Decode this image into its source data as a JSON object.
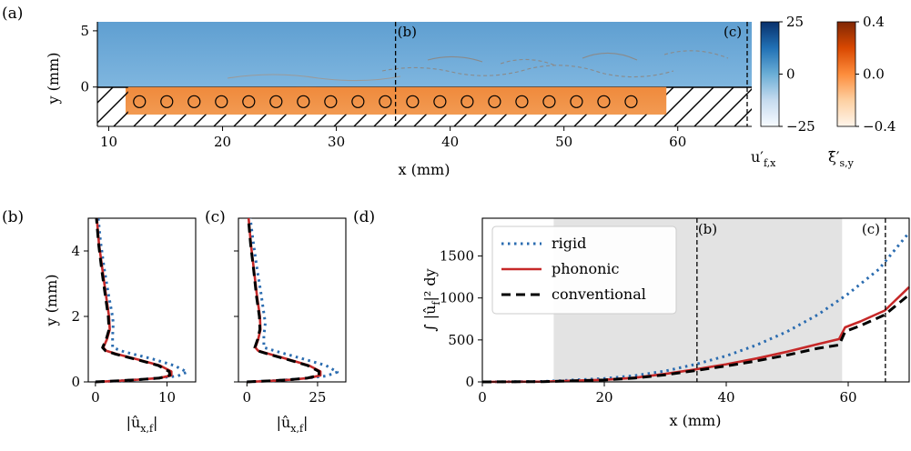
{
  "chart_data": [
    {
      "panel": "(a)",
      "type": "heatmap",
      "xlabel": "x (mm)",
      "ylabel": "y (mm)",
      "xticks": [
        "10",
        "20",
        "30",
        "40",
        "50",
        "60"
      ],
      "yticks": [
        "0",
        "5"
      ],
      "xlim": [
        9,
        66.5
      ],
      "ylim": [
        -3.5,
        5.8
      ],
      "cut_labels": [
        "(b)",
        "(c)"
      ],
      "cut_x": [
        35.2,
        66.1
      ],
      "resonators": {
        "x_start": 12.7,
        "spacing": 2.4,
        "count": 19,
        "y": -1.3,
        "strip_x": [
          11.7,
          59.0
        ]
      },
      "colorbars": [
        {
          "label": "u′f,x",
          "ticks": [
            "25",
            "0",
            "−25"
          ],
          "range": [
            -25,
            25
          ],
          "colormap": "blues"
        },
        {
          "label": "ξ̇′s,y",
          "ticks": [
            "0.4",
            "0.0",
            "−0.4"
          ],
          "range": [
            -0.4,
            0.4
          ],
          "colormap": "oranges"
        }
      ]
    },
    {
      "panel": "(b)",
      "type": "line",
      "xlabel": "|ûx,f|",
      "ylabel": "y (mm)",
      "xticks": [
        "0",
        "10"
      ],
      "yticks": [
        "0",
        "2",
        "4"
      ],
      "xlim": [
        -1,
        14
      ],
      "ylim": [
        0,
        5
      ],
      "series": [
        {
          "name": "rigid",
          "color": "#2b6cb0",
          "points": [
            [
              0,
              0
            ],
            [
              4,
              0.04
            ],
            [
              8,
              0.1
            ],
            [
              11.5,
              0.18
            ],
            [
              12.8,
              0.3
            ],
            [
              11,
              0.5
            ],
            [
              8,
              0.7
            ],
            [
              4,
              0.92
            ],
            [
              2.4,
              1.05
            ],
            [
              2.4,
              1.4
            ],
            [
              2.5,
              1.8
            ],
            [
              2.3,
              2.1
            ],
            [
              1.8,
              2.7
            ],
            [
              1.2,
              3.5
            ],
            [
              0.7,
              4.3
            ],
            [
              0.4,
              5
            ]
          ]
        },
        {
          "name": "phononic",
          "color": "#c62828",
          "points": [
            [
              0,
              0
            ],
            [
              3,
              0.03
            ],
            [
              6,
              0.07
            ],
            [
              9,
              0.12
            ],
            [
              10.6,
              0.2
            ],
            [
              10.6,
              0.32
            ],
            [
              9,
              0.5
            ],
            [
              6,
              0.68
            ],
            [
              3,
              0.85
            ],
            [
              1.5,
              0.95
            ],
            [
              1.1,
              1.05
            ],
            [
              1.6,
              1.3
            ],
            [
              2.0,
              1.6
            ],
            [
              1.9,
              2.0
            ],
            [
              1.5,
              2.6
            ],
            [
              1.0,
              3.4
            ],
            [
              0.5,
              4.2
            ],
            [
              0.2,
              5
            ]
          ]
        },
        {
          "name": "conventional",
          "color": "#000000",
          "points": [
            [
              0,
              0
            ],
            [
              3,
              0.03
            ],
            [
              6,
              0.07
            ],
            [
              9,
              0.12
            ],
            [
              10.4,
              0.2
            ],
            [
              10.3,
              0.32
            ],
            [
              8.8,
              0.5
            ],
            [
              5.8,
              0.68
            ],
            [
              2.8,
              0.85
            ],
            [
              1.4,
              0.95
            ],
            [
              1.0,
              1.05
            ],
            [
              1.5,
              1.3
            ],
            [
              1.9,
              1.6
            ],
            [
              1.8,
              2.0
            ],
            [
              1.4,
              2.6
            ],
            [
              0.9,
              3.4
            ],
            [
              0.45,
              4.2
            ],
            [
              0.15,
              5
            ]
          ]
        }
      ]
    },
    {
      "panel": "(c)",
      "type": "line",
      "xlabel": "|ûx,f|",
      "ylabel": "",
      "xticks": [
        "0",
        "25"
      ],
      "yticks": [],
      "xlim": [
        -3,
        35
      ],
      "ylim": [
        0,
        5
      ],
      "series": [
        {
          "name": "rigid",
          "color": "#2b6cb0",
          "points": [
            [
              0,
              0
            ],
            [
              10,
              0.04
            ],
            [
              20,
              0.1
            ],
            [
              28,
              0.18
            ],
            [
              32,
              0.3
            ],
            [
              28,
              0.5
            ],
            [
              20,
              0.7
            ],
            [
              11,
              0.92
            ],
            [
              6,
              1.05
            ],
            [
              6,
              1.4
            ],
            [
              6.5,
              1.8
            ],
            [
              6,
              2.1
            ],
            [
              5,
              2.7
            ],
            [
              3.5,
              3.5
            ],
            [
              2.2,
              4.3
            ],
            [
              1.2,
              5
            ]
          ]
        },
        {
          "name": "phononic",
          "color": "#c62828",
          "points": [
            [
              0,
              0
            ],
            [
              8,
              0.03
            ],
            [
              16,
              0.07
            ],
            [
              22,
              0.12
            ],
            [
              26,
              0.2
            ],
            [
              26,
              0.32
            ],
            [
              22,
              0.5
            ],
            [
              15,
              0.68
            ],
            [
              8,
              0.85
            ],
            [
              4,
              0.95
            ],
            [
              3,
              1.05
            ],
            [
              4,
              1.3
            ],
            [
              4.8,
              1.6
            ],
            [
              4.6,
              2.0
            ],
            [
              3.6,
              2.6
            ],
            [
              2.5,
              3.4
            ],
            [
              1.4,
              4.2
            ],
            [
              0.6,
              5
            ]
          ]
        },
        {
          "name": "conventional",
          "color": "#000000",
          "points": [
            [
              0,
              0
            ],
            [
              8,
              0.03
            ],
            [
              15.5,
              0.07
            ],
            [
              21.5,
              0.12
            ],
            [
              25.5,
              0.2
            ],
            [
              25.5,
              0.32
            ],
            [
              21.5,
              0.5
            ],
            [
              14.5,
              0.68
            ],
            [
              7.5,
              0.85
            ],
            [
              3.8,
              0.95
            ],
            [
              2.8,
              1.05
            ],
            [
              3.8,
              1.3
            ],
            [
              4.6,
              1.6
            ],
            [
              4.4,
              2.0
            ],
            [
              3.4,
              2.6
            ],
            [
              2.4,
              3.4
            ],
            [
              1.3,
              4.2
            ],
            [
              0.5,
              5
            ]
          ]
        }
      ]
    },
    {
      "panel": "(d)",
      "type": "line",
      "xlabel": "x (mm)",
      "ylabel": "∫ |ûf|² dy",
      "xticks": [
        "0",
        "20",
        "40",
        "60"
      ],
      "yticks": [
        "0",
        "500",
        "1000",
        "1500"
      ],
      "xlim": [
        0,
        70
      ],
      "ylim": [
        0,
        1950
      ],
      "shaded_region": [
        11.7,
        59
      ],
      "cut_labels": [
        "(b)",
        "(c)"
      ],
      "cut_x": [
        35.2,
        66.1
      ],
      "legend_position": "top-left",
      "series": [
        {
          "name": "rigid",
          "color": "#2b6cb0",
          "points": [
            [
              0,
              0
            ],
            [
              10,
              5
            ],
            [
              20,
              40
            ],
            [
              25,
              75
            ],
            [
              30,
              130
            ],
            [
              35,
              210
            ],
            [
              40,
              310
            ],
            [
              45,
              440
            ],
            [
              50,
              600
            ],
            [
              55,
              800
            ],
            [
              60,
              1050
            ],
            [
              65,
              1340
            ],
            [
              70,
              1780
            ]
          ]
        },
        {
          "name": "phononic",
          "color": "#c62828",
          "points": [
            [
              0,
              0
            ],
            [
              10,
              3
            ],
            [
              20,
              25
            ],
            [
              25,
              50
            ],
            [
              30,
              95
            ],
            [
              35,
              150
            ],
            [
              40,
              210
            ],
            [
              45,
              280
            ],
            [
              50,
              360
            ],
            [
              55,
              450
            ],
            [
              58.5,
              510
            ],
            [
              59.5,
              650
            ],
            [
              62,
              720
            ],
            [
              66,
              850
            ],
            [
              70,
              1130
            ]
          ]
        },
        {
          "name": "conventional",
          "color": "#000000",
          "points": [
            [
              0,
              0
            ],
            [
              10,
              3
            ],
            [
              20,
              23
            ],
            [
              25,
              45
            ],
            [
              30,
              85
            ],
            [
              35,
              135
            ],
            [
              40,
              190
            ],
            [
              45,
              250
            ],
            [
              50,
              320
            ],
            [
              55,
              400
            ],
            [
              58.5,
              440
            ],
            [
              59.5,
              600
            ],
            [
              62,
              670
            ],
            [
              66,
              800
            ],
            [
              70,
              1040
            ]
          ]
        }
      ]
    }
  ]
}
